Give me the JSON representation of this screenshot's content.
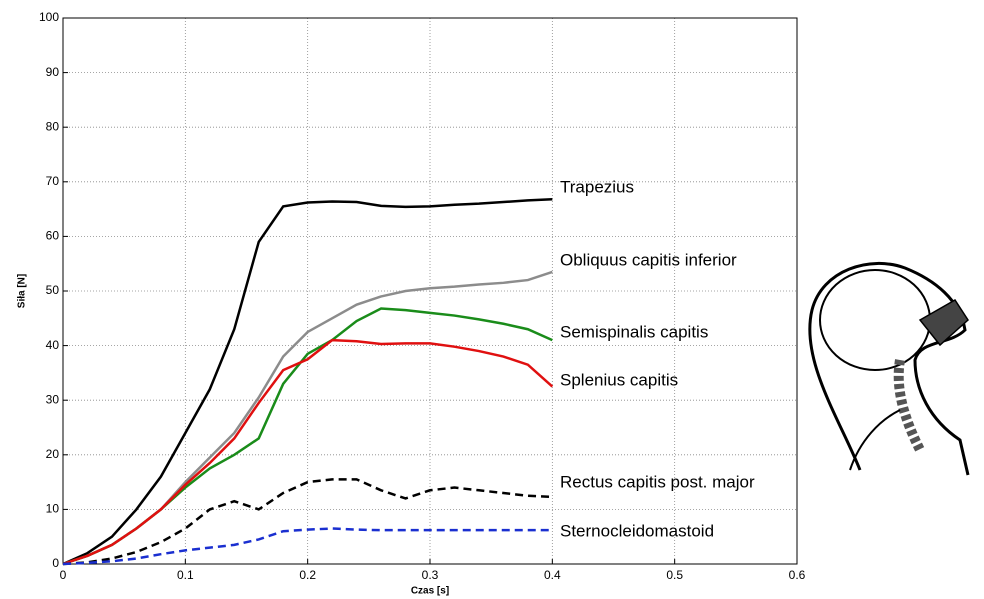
{
  "chart_data": {
    "type": "line",
    "x_label": "Czas [s]",
    "y_label": "Siła [N]",
    "x": [
      0,
      0.02,
      0.04,
      0.06,
      0.08,
      0.1,
      0.12,
      0.14,
      0.16,
      0.18,
      0.2,
      0.22,
      0.24,
      0.26,
      0.28,
      0.3,
      0.32,
      0.34,
      0.36,
      0.38,
      0.4
    ],
    "series": [
      {
        "name": "Trapezius",
        "color": "#000000",
        "dashed": false,
        "values": [
          0,
          2,
          5,
          10,
          16,
          24,
          32,
          43,
          59,
          65.5,
          66.2,
          66.4,
          66.3,
          65.6,
          65.4,
          65.5,
          65.8,
          66,
          66.3,
          66.6,
          66.8
        ]
      },
      {
        "name": "Obliquus capitis inferior",
        "color": "#8c8c8c",
        "dashed": false,
        "values": [
          0,
          1.5,
          3.5,
          6.5,
          10,
          15,
          19.5,
          24,
          30.5,
          38,
          42.5,
          45,
          47.5,
          49,
          50,
          50.5,
          50.8,
          51.2,
          51.5,
          52,
          53.5
        ]
      },
      {
        "name": "Semispinalis capitis",
        "color": "#1a8c1a",
        "dashed": false,
        "values": [
          0,
          1.5,
          3.5,
          6.5,
          10,
          14,
          17.5,
          20,
          23,
          33,
          38.5,
          41,
          44.5,
          46.8,
          46.5,
          46,
          45.5,
          44.8,
          44,
          43,
          41
        ]
      },
      {
        "name": "Splenius capitis",
        "color": "#e01010",
        "dashed": false,
        "values": [
          0,
          1.5,
          3.5,
          6.5,
          10,
          14.5,
          18.5,
          23,
          29.5,
          35.5,
          37.5,
          41,
          40.8,
          40.3,
          40.4,
          40.4,
          39.8,
          39,
          38,
          36.5,
          32.5
        ]
      },
      {
        "name": "Rectus capitis post. major",
        "color": "#000000",
        "dashed": true,
        "values": [
          0,
          0.3,
          1,
          2.2,
          4,
          6.5,
          10,
          11.5,
          10,
          13,
          15,
          15.5,
          15.5,
          13.5,
          12,
          13.5,
          14,
          13.5,
          13,
          12.5,
          12.3
        ]
      },
      {
        "name": "Sternocleidomastoid",
        "color": "#1a2fd0",
        "dashed": true,
        "values": [
          0,
          0.2,
          0.5,
          1,
          1.8,
          2.5,
          3,
          3.5,
          4.5,
          6,
          6.3,
          6.5,
          6.3,
          6.2,
          6.2,
          6.2,
          6.2,
          6.2,
          6.2,
          6.2,
          6.2
        ]
      }
    ],
    "xlim": [
      0,
      0.6
    ],
    "xticks": [
      0,
      0.1,
      0.2,
      0.3,
      0.4,
      0.5,
      0.6
    ],
    "ylim": [
      0,
      100
    ],
    "yticks": [
      0,
      10,
      20,
      30,
      40,
      50,
      60,
      70,
      80,
      90,
      100
    ],
    "grid": true
  }
}
